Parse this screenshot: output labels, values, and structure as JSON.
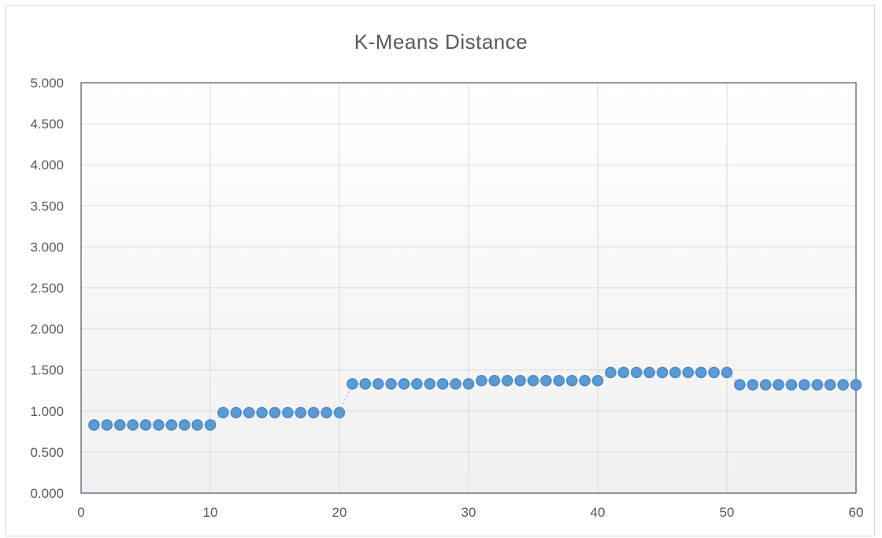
{
  "chart_data": {
    "type": "line",
    "title": "K-Means Distance",
    "xlabel": "",
    "ylabel": "",
    "xlim": [
      0,
      60
    ],
    "ylim": [
      0,
      5
    ],
    "x_ticks": [
      "0",
      "10",
      "20",
      "30",
      "40",
      "50",
      "60"
    ],
    "y_ticks": [
      "0.000",
      "0.500",
      "1.000",
      "1.500",
      "2.000",
      "2.500",
      "3.000",
      "3.500",
      "4.000",
      "4.500",
      "5.000"
    ],
    "grid": true,
    "legend": "none",
    "marker_color": "#5b9bd5",
    "marker_edge_color": "#4a86c5",
    "line_style": "dotted",
    "series": [
      {
        "x": [
          1,
          2,
          3,
          4,
          5,
          6,
          7,
          8,
          9,
          10,
          11,
          12,
          13,
          14,
          15,
          16,
          17,
          18,
          19,
          20,
          21,
          22,
          23,
          24,
          25,
          26,
          27,
          28,
          29,
          30,
          31,
          32,
          33,
          34,
          35,
          36,
          37,
          38,
          39,
          40,
          41,
          42,
          43,
          44,
          45,
          46,
          47,
          48,
          49,
          50,
          51,
          52,
          53,
          54,
          55,
          56,
          57,
          58,
          59,
          60
        ],
        "values": [
          0.83,
          0.83,
          0.83,
          0.83,
          0.83,
          0.83,
          0.83,
          0.83,
          0.83,
          0.83,
          0.98,
          0.98,
          0.98,
          0.98,
          0.98,
          0.98,
          0.98,
          0.98,
          0.98,
          0.98,
          1.33,
          1.33,
          1.33,
          1.33,
          1.33,
          1.33,
          1.33,
          1.33,
          1.33,
          1.33,
          1.37,
          1.37,
          1.37,
          1.37,
          1.37,
          1.37,
          1.37,
          1.37,
          1.37,
          1.37,
          1.47,
          1.47,
          1.47,
          1.47,
          1.47,
          1.47,
          1.47,
          1.47,
          1.47,
          1.47,
          1.32,
          1.32,
          1.32,
          1.32,
          1.32,
          1.32,
          1.32,
          1.32,
          1.32,
          1.32
        ]
      }
    ]
  }
}
